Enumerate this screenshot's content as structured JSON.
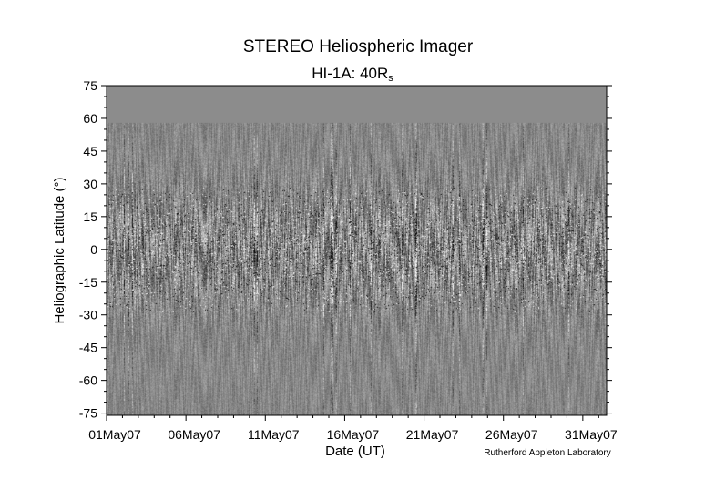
{
  "chart_data": {
    "type": "heatmap",
    "title": "STEREO Heliospheric Imager",
    "subtitle_main": "HI-1A: 40R",
    "subtitle_sub": "s",
    "xlabel": "Date (UT)",
    "ylabel": "Heliographic Latitude (°)",
    "credit": "Rutherford Appleton Laboratory",
    "x_ticks": [
      "01May07",
      "06May07",
      "11May07",
      "16May07",
      "21May07",
      "26May07",
      "31May07"
    ],
    "x_tick_days": [
      0,
      5,
      10,
      15,
      20,
      25,
      30
    ],
    "x_range_days": [
      0,
      31.5
    ],
    "y_ticks": [
      "75",
      "60",
      "45",
      "30",
      "15",
      "0",
      "-15",
      "-30",
      "-45",
      "-60",
      "-75"
    ],
    "y_tick_values": [
      75,
      60,
      45,
      30,
      15,
      0,
      -15,
      -30,
      -45,
      -60,
      -75
    ],
    "ylim": [
      -76,
      75
    ],
    "no_data_above_latitude": 58,
    "colormap": "grayscale difference image",
    "colors": {
      "no_data": "#8c8c8c",
      "background": "#ffffff"
    }
  }
}
